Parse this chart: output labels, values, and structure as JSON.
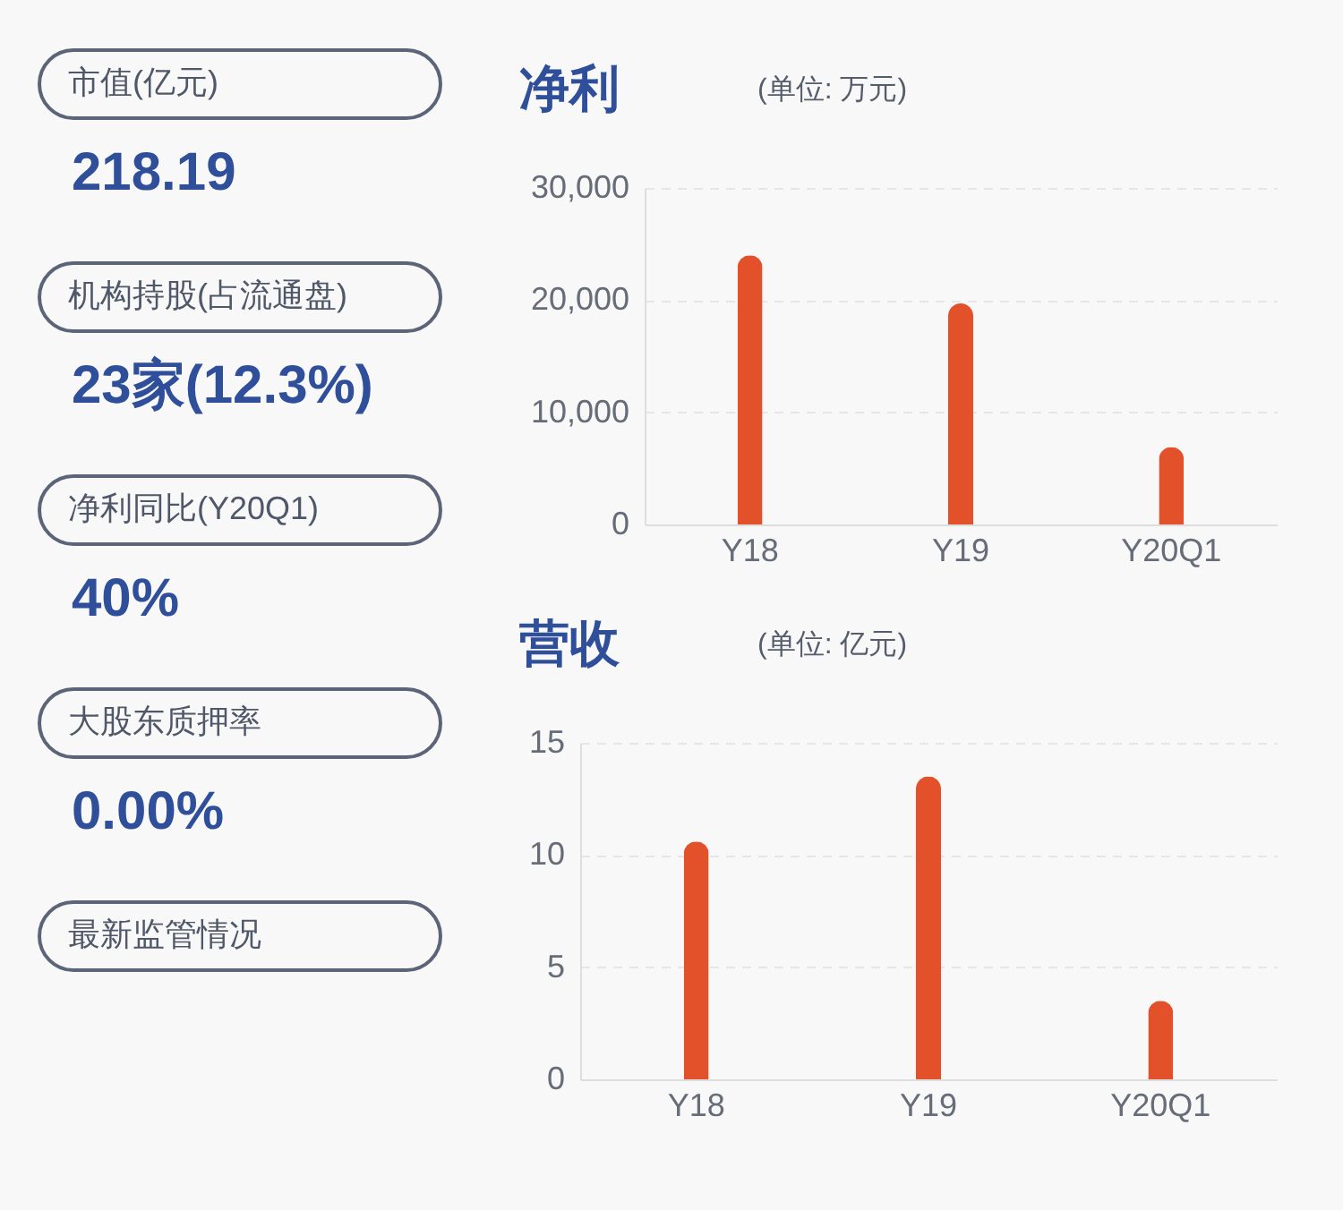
{
  "chart_data": [
    {
      "type": "other",
      "categories": [
        "市值(亿元)",
        "机构持股(占流通盘)",
        "净利同比(Y20Q1)",
        "大股东质押率",
        "最新监管情况"
      ],
      "value_labels": [
        "218.19",
        "23家(12.3%)",
        "40%",
        "0.00%",
        null
      ]
    },
    {
      "type": "bar",
      "title": "净利",
      "subtitle": "(单位: 万元)",
      "categories": [
        "Y18",
        "Y19",
        "Y20Q1"
      ],
      "values": [
        24000,
        19700,
        6900
      ],
      "color": "#e2512a",
      "ylim": [
        0,
        30000
      ],
      "yticks": [
        {
          "value": 0,
          "label": "0"
        },
        {
          "value": 10000,
          "label": "10,000"
        },
        {
          "value": 20000,
          "label": "20,000"
        },
        {
          "value": 30000,
          "label": "30,000"
        }
      ],
      "grid": "y"
    },
    {
      "type": "bar",
      "title": "营收",
      "subtitle": "(单位: 亿元)",
      "categories": [
        "Y18",
        "Y19",
        "Y20Q1"
      ],
      "values": [
        10.6,
        13.5,
        3.5
      ],
      "color": "#e2512a",
      "ylim": [
        0,
        15
      ],
      "yticks": [
        0,
        5,
        10,
        15
      ],
      "grid": "y"
    }
  ]
}
